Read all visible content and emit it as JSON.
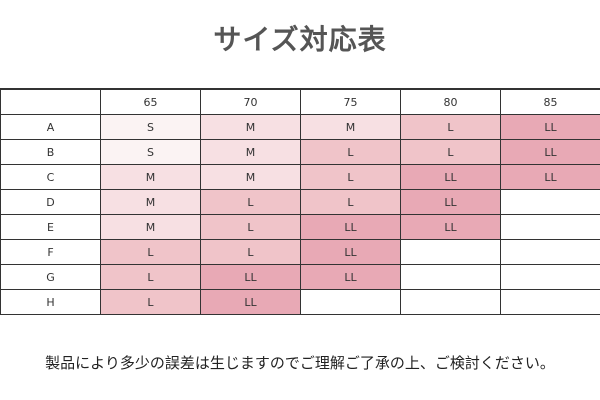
{
  "title": "サイズ対応表",
  "table": {
    "columns": [
      "",
      "65",
      "70",
      "75",
      "80",
      "85"
    ],
    "rows": [
      {
        "label": "A",
        "cells": [
          "S",
          "M",
          "M",
          "L",
          "LL"
        ]
      },
      {
        "label": "B",
        "cells": [
          "S",
          "M",
          "L",
          "L",
          "LL"
        ]
      },
      {
        "label": "C",
        "cells": [
          "M",
          "M",
          "L",
          "LL",
          "LL"
        ]
      },
      {
        "label": "D",
        "cells": [
          "M",
          "L",
          "L",
          "LL",
          ""
        ]
      },
      {
        "label": "E",
        "cells": [
          "M",
          "L",
          "LL",
          "LL",
          ""
        ]
      },
      {
        "label": "F",
        "cells": [
          "L",
          "L",
          "LL",
          "",
          ""
        ]
      },
      {
        "label": "G",
        "cells": [
          "L",
          "LL",
          "LL",
          "",
          ""
        ]
      },
      {
        "label": "H",
        "cells": [
          "L",
          "LL",
          "",
          "",
          ""
        ]
      }
    ],
    "colors": {
      "S": "#fbf3f3",
      "M": "#f7e0e3",
      "L": "#f0c4c9",
      "LL": "#e8a9b5"
    }
  },
  "note": "製品により多少の誤差は生じますのでご理解ご了承の上、ご検討ください。"
}
